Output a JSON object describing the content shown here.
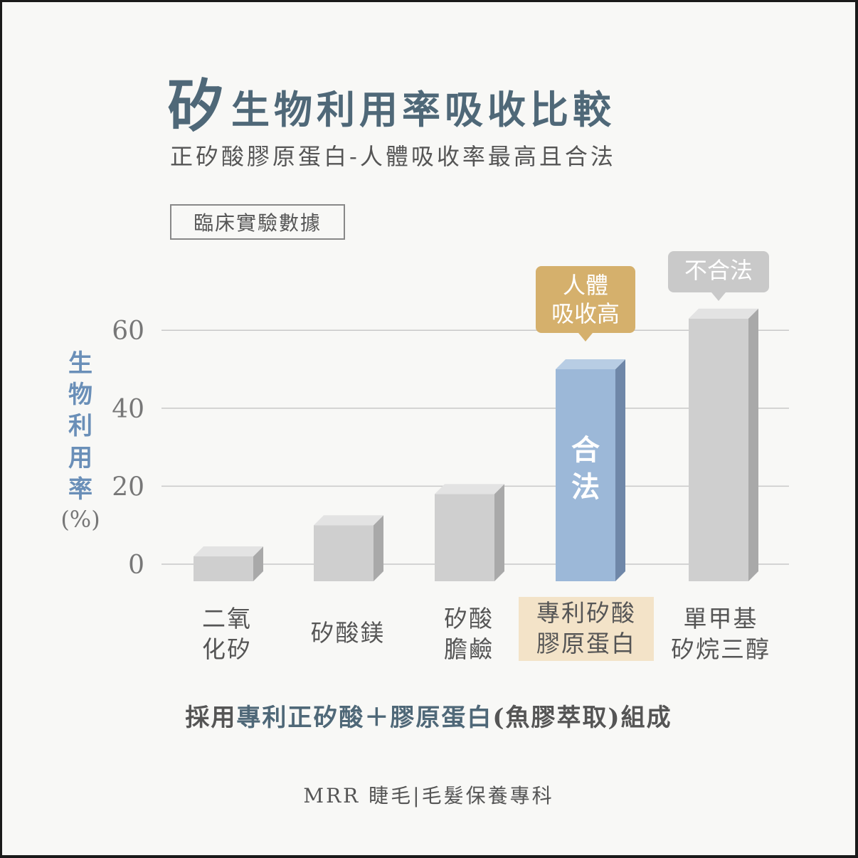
{
  "title": {
    "highlight": "矽",
    "rest": "生物利用率吸收比較"
  },
  "subtitle": "正矽酸膠原蛋白-人體吸收率最高且合法",
  "source_label": "臨床實驗數據",
  "note": {
    "prefix": "採用",
    "highlight": "專利正矽酸＋膠原蛋白",
    "suffix": "(魚膠萃取)組成"
  },
  "footer": "MRR 睫毛|毛髮保養專科",
  "chart_data": {
    "type": "bar",
    "ylabel": "生物利用率",
    "ylabel_unit": "(%)",
    "ylim": [
      0,
      60
    ],
    "yticks": [
      "0",
      "20",
      "40",
      "60"
    ],
    "grid": true,
    "categories": [
      {
        "line1": "二氧",
        "line2": "化矽",
        "value": 2
      },
      {
        "line1": "矽酸鎂",
        "line2": "",
        "value": 10
      },
      {
        "line1": "矽酸",
        "line2": "膽鹼",
        "value": 18
      },
      {
        "line1": "專利矽酸",
        "line2": "膠原蛋白",
        "value": 50
      },
      {
        "line1": "單甲基",
        "line2": "矽烷三醇",
        "value": 63
      }
    ],
    "bar_label": {
      "index": 3,
      "text": "合法"
    },
    "callouts": [
      {
        "index": 3,
        "text": "人體\n吸收高",
        "color": "#d5b06c"
      },
      {
        "index": 4,
        "text": "不合法",
        "color": "#c9c9c9"
      }
    ],
    "highlight_index": 3,
    "colors": {
      "bar": "#cfcfcf",
      "highlight": "#9cb8d8",
      "grid": "#c8c8c8"
    }
  }
}
